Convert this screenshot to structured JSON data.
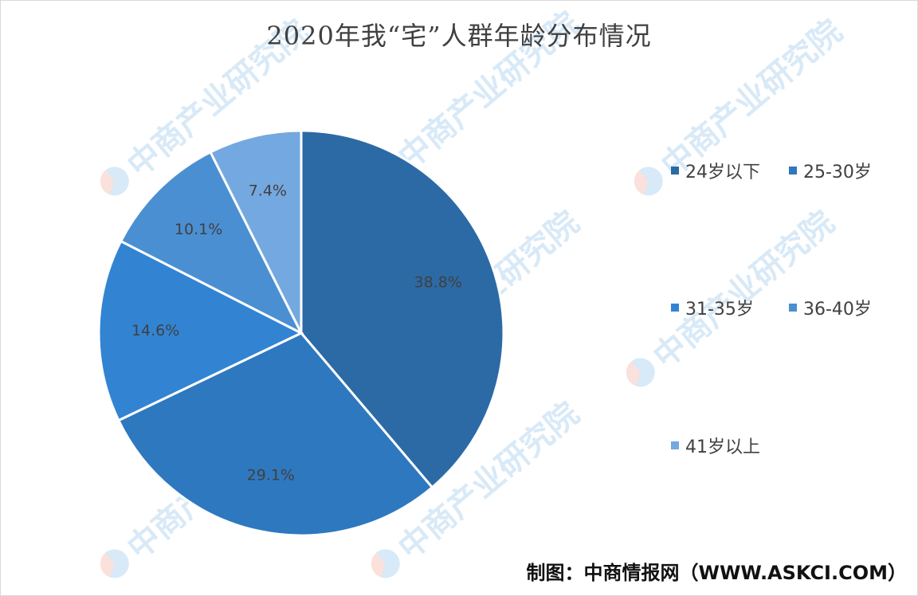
{
  "chart_data": {
    "type": "pie",
    "title": "2020年我“宅”人群年龄分布情况",
    "categories": [
      "24岁以下",
      "25-30岁",
      "31-35岁",
      "36-40岁",
      "41岁以上"
    ],
    "values": [
      38.8,
      29.1,
      14.6,
      10.1,
      7.4
    ],
    "value_labels": [
      "38.8%",
      "29.1%",
      "14.6%",
      "10.1%",
      "7.4%"
    ],
    "colors": [
      "#2c6aa6",
      "#2e78bf",
      "#3284d3",
      "#4b8fd3",
      "#74a8e0"
    ],
    "start_angle": "12 o'clock",
    "direction": "clockwise",
    "legend_position": "right"
  },
  "source": "制图：中商情报网（WWW.ASKCI.COM）",
  "watermark": {
    "text": "中商产业研究院",
    "logo_icon": "askci-logo-icon"
  }
}
